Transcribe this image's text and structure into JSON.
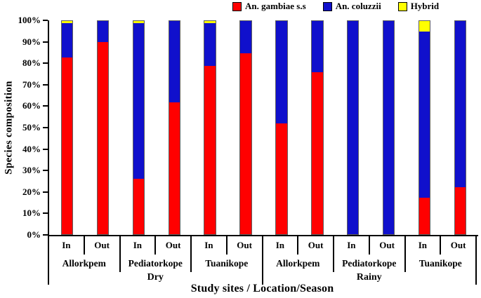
{
  "colors": {
    "gambiae": "#ff0000",
    "coluzzii": "#1010cc",
    "hybrid": "#ffff00",
    "axis": "#000000",
    "bar_outline": "#5f5f5f",
    "background": "#ffffff"
  },
  "legend": {
    "items": [
      {
        "label": "An. gambiae s.s",
        "series": "gambiae"
      },
      {
        "label": "An. coluzzii",
        "series": "coluzzii"
      },
      {
        "label": "Hybrid",
        "series": "hybrid"
      }
    ]
  },
  "y_axis": {
    "label": "Species composition",
    "min": 0,
    "max": 100,
    "step": 10,
    "tick_labels": [
      "0%",
      "10%",
      "20%",
      "30%",
      "40%",
      "50%",
      "60%",
      "70%",
      "80%",
      "90%",
      "100%"
    ]
  },
  "x_axis": {
    "title": "Study sites / Location/Season"
  },
  "chart_data": {
    "type": "bar",
    "stacked": true,
    "unit": "percent",
    "ylim": [
      0,
      100
    ],
    "grid": false,
    "legend_position": "top",
    "series_order": [
      "gambiae",
      "coluzzii",
      "hybrid"
    ],
    "series_labels": {
      "gambiae": "An. gambiae s.s",
      "coluzzii": "An. coluzzii",
      "hybrid": "Hybrid"
    },
    "groups": [
      {
        "season": "Dry",
        "sites": [
          {
            "site": "Allorkpem",
            "bars": [
              {
                "location": "In",
                "values": {
                  "gambiae": 83,
                  "coluzzii": 16,
                  "hybrid": 1
                }
              },
              {
                "location": "Out",
                "values": {
                  "gambiae": 90,
                  "coluzzii": 10,
                  "hybrid": 0
                }
              }
            ]
          },
          {
            "site": "Pediatorkope",
            "bars": [
              {
                "location": "In",
                "values": {
                  "gambiae": 26,
                  "coluzzii": 73,
                  "hybrid": 1
                }
              },
              {
                "location": "Out",
                "values": {
                  "gambiae": 62,
                  "coluzzii": 38,
                  "hybrid": 0
                }
              }
            ]
          },
          {
            "site": "Tuanikope",
            "bars": [
              {
                "location": "In",
                "values": {
                  "gambiae": 79,
                  "coluzzii": 20,
                  "hybrid": 1
                }
              },
              {
                "location": "Out",
                "values": {
                  "gambiae": 85,
                  "coluzzii": 15,
                  "hybrid": 0
                }
              }
            ]
          }
        ]
      },
      {
        "season": "Rainy",
        "sites": [
          {
            "site": "Allorkpem",
            "bars": [
              {
                "location": "In",
                "values": {
                  "gambiae": 52,
                  "coluzzii": 48,
                  "hybrid": 0
                }
              },
              {
                "location": "Out",
                "values": {
                  "gambiae": 76,
                  "coluzzii": 24,
                  "hybrid": 0
                }
              }
            ]
          },
          {
            "site": "Pediatorkope",
            "bars": [
              {
                "location": "In",
                "values": {
                  "gambiae": 0,
                  "coluzzii": 100,
                  "hybrid": 0
                }
              },
              {
                "location": "Out",
                "values": {
                  "gambiae": 0,
                  "coluzzii": 100,
                  "hybrid": 0
                }
              }
            ]
          },
          {
            "site": "Tuanikope",
            "bars": [
              {
                "location": "In",
                "values": {
                  "gambiae": 17,
                  "coluzzii": 78,
                  "hybrid": 5
                }
              },
              {
                "location": "Out",
                "values": {
                  "gambiae": 22,
                  "coluzzii": 78,
                  "hybrid": 0
                }
              }
            ]
          }
        ]
      }
    ]
  }
}
